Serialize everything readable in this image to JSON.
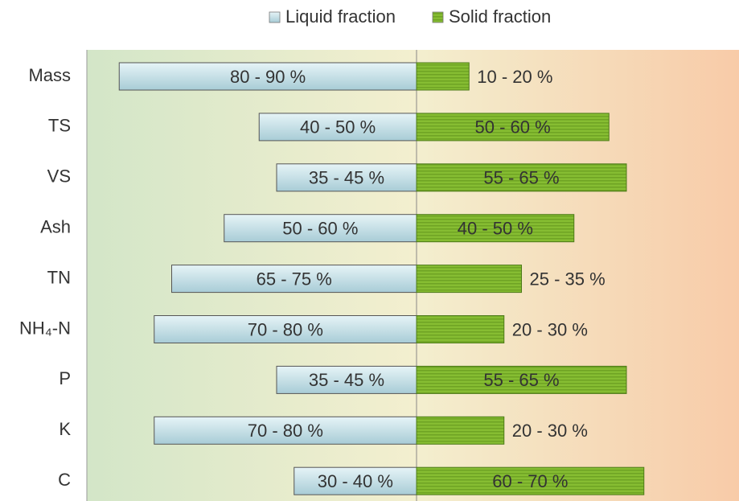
{
  "chart_data": {
    "type": "diverging-bar",
    "categories": [
      "Mass",
      "TS",
      "VS",
      "Ash",
      "TN",
      "NH₄-N",
      "P",
      "K",
      "C"
    ],
    "series": [
      {
        "name": "Liquid fraction",
        "color": "#bfe0e8",
        "values": [
          85,
          45,
          40,
          55,
          70,
          75,
          40,
          75,
          35
        ],
        "value_labels": [
          "80 - 90 %",
          "40 - 50 %",
          "35 - 45 %",
          "50 - 60 %",
          "65 - 75 %",
          "70 - 80 %",
          "35 - 45 %",
          "70 - 80 %",
          "30 - 40 %"
        ]
      },
      {
        "name": "Solid fraction",
        "color": "#7fb52e",
        "values": [
          15,
          55,
          60,
          45,
          30,
          25,
          60,
          25,
          65
        ],
        "value_labels": [
          "10 - 20 %",
          "50 - 60 %",
          "55 - 65 %",
          "40 - 50 %",
          "25 - 35 %",
          "20 - 30 %",
          "55 - 65 %",
          "20 - 30 %",
          "60 - 70 %"
        ]
      }
    ]
  }
}
